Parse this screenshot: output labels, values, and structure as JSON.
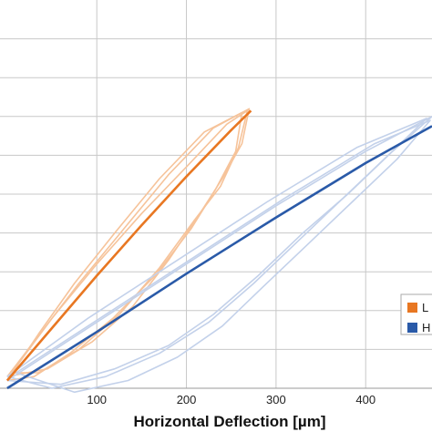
{
  "chart_data": {
    "type": "line",
    "title": "",
    "xlabel": "Horizontal Deflection [µm]",
    "ylabel": "",
    "xlim": [
      -8,
      474
    ],
    "ylim": [
      0,
      1.0
    ],
    "x_ticks": [
      100,
      200,
      300,
      400
    ],
    "x_tick_labels": [
      "100",
      "200",
      "300",
      "400"
    ],
    "y_gridlines": [
      0.1,
      0.2,
      0.3,
      0.4,
      0.5,
      0.6,
      0.7,
      0.8,
      0.9
    ],
    "grid": true,
    "legend": {
      "placement": "bottom-right",
      "entries": [
        "L",
        "H"
      ]
    },
    "colors": {
      "L_main": "#e87722",
      "L_faint": "#f6c39a",
      "H_main": "#2a5aa8",
      "H_faint": "#c3d1ea"
    },
    "series": [
      {
        "name": "L",
        "role": "mean",
        "color": "#e87722",
        "x": [
          0,
          50,
          100,
          150,
          200,
          250,
          272
        ],
        "y": [
          0.02,
          0.155,
          0.29,
          0.42,
          0.545,
          0.665,
          0.715
        ]
      },
      {
        "name": "H",
        "role": "mean",
        "color": "#2a5aa8",
        "x": [
          0,
          100,
          200,
          300,
          400,
          474
        ],
        "y": [
          0.0,
          0.145,
          0.295,
          0.44,
          0.58,
          0.675
        ]
      }
    ],
    "faint_cycles": [
      {
        "group": "L",
        "x": [
          0,
          40,
          80,
          130,
          180,
          230,
          270,
          262,
          240,
          215,
          180,
          140,
          95,
          45,
          0
        ],
        "y": [
          0.03,
          0.15,
          0.27,
          0.41,
          0.55,
          0.67,
          0.72,
          0.63,
          0.54,
          0.45,
          0.33,
          0.21,
          0.12,
          0.05,
          0.03
        ]
      },
      {
        "group": "L",
        "x": [
          5,
          50,
          100,
          150,
          200,
          245,
          268,
          258,
          238,
          208,
          170,
          125,
          80,
          35,
          5
        ],
        "y": [
          0.04,
          0.18,
          0.32,
          0.45,
          0.57,
          0.68,
          0.715,
          0.62,
          0.52,
          0.43,
          0.31,
          0.19,
          0.1,
          0.04,
          0.04
        ]
      },
      {
        "group": "L",
        "x": [
          0,
          35,
          75,
          120,
          170,
          220,
          262,
          255,
          232,
          205,
          165,
          118,
          70,
          30,
          0
        ],
        "y": [
          0.02,
          0.14,
          0.27,
          0.4,
          0.54,
          0.66,
          0.71,
          0.61,
          0.51,
          0.41,
          0.29,
          0.18,
          0.09,
          0.03,
          0.02
        ]
      },
      {
        "group": "H",
        "x": [
          0,
          100,
          200,
          300,
          400,
          474,
          430,
          380,
          330,
          280,
          230,
          180,
          120,
          60,
          0
        ],
        "y": [
          0.02,
          0.17,
          0.32,
          0.47,
          0.61,
          0.7,
          0.61,
          0.5,
          0.4,
          0.29,
          0.19,
          0.11,
          0.05,
          0.01,
          0.02
        ]
      },
      {
        "group": "H",
        "x": [
          0,
          90,
          190,
          290,
          390,
          468,
          425,
          375,
          325,
          275,
          225,
          170,
          110,
          50,
          0
        ],
        "y": [
          0.03,
          0.18,
          0.33,
          0.48,
          0.62,
          0.695,
          0.6,
          0.49,
          0.38,
          0.27,
          0.17,
          0.09,
          0.03,
          0.0,
          0.03
        ]
      },
      {
        "group": "H",
        "x": [
          10,
          110,
          210,
          310,
          410,
          472,
          435,
          385,
          335,
          285,
          240,
          190,
          135,
          75,
          10
        ],
        "y": [
          0.04,
          0.19,
          0.34,
          0.49,
          0.63,
          0.69,
          0.59,
          0.48,
          0.37,
          0.26,
          0.16,
          0.08,
          0.02,
          -0.01,
          0.04
        ]
      }
    ]
  }
}
